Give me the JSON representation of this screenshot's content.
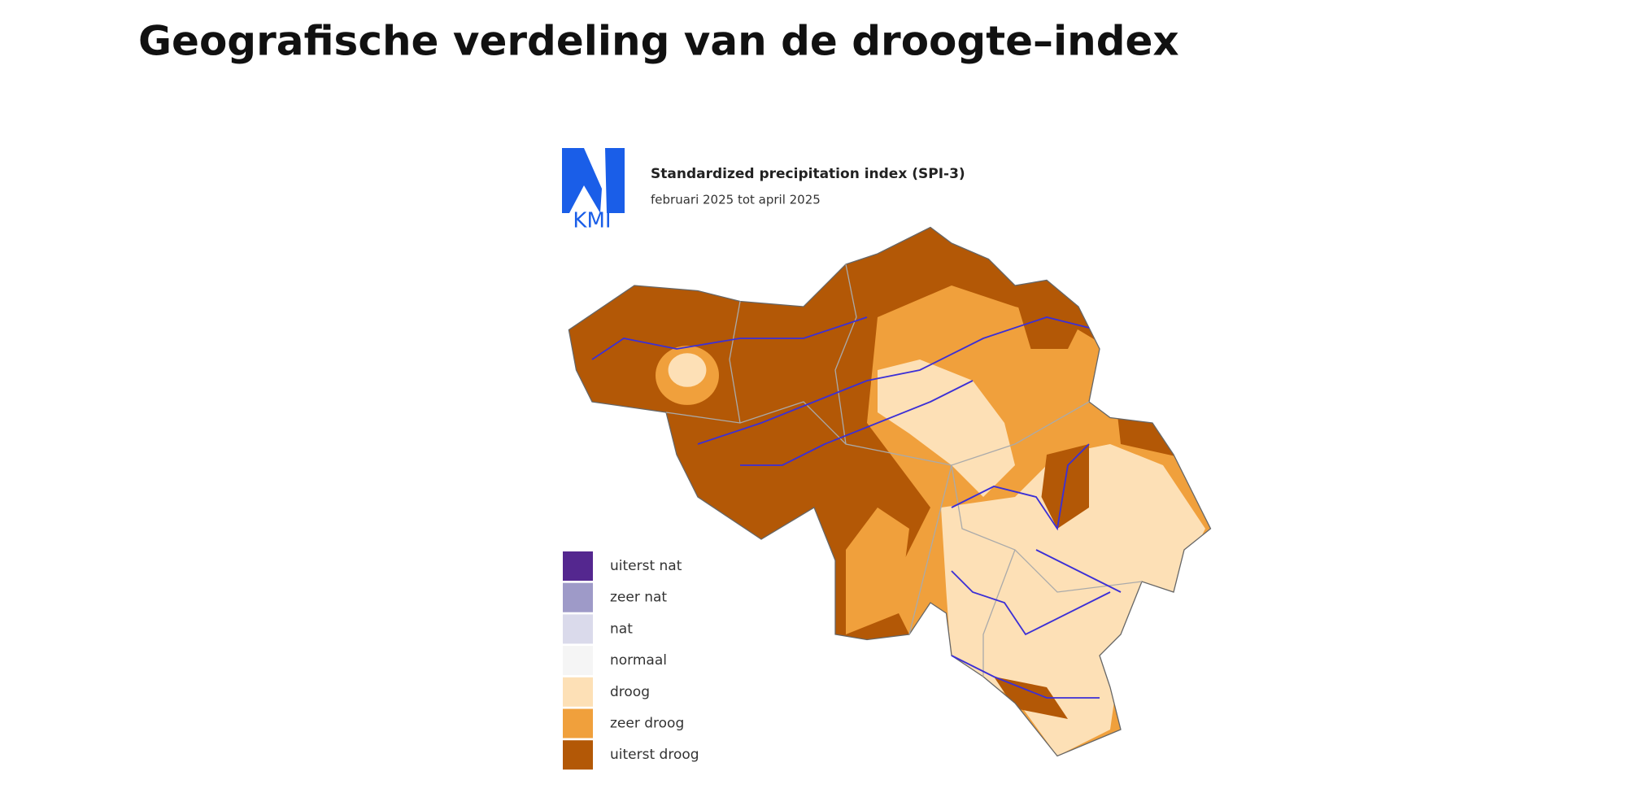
{
  "title": "Geografische verdeling van de droogte–index",
  "map": {
    "logo": "KMI",
    "title": "Standardized precipitation index (SPI-3)",
    "subtitle": "februari 2025 tot april 2025",
    "legend": [
      {
        "label": "uiterst nat",
        "color": "#54278f"
      },
      {
        "label": "zeer nat",
        "color": "#9e9ac8"
      },
      {
        "label": "nat",
        "color": "#dadaeb"
      },
      {
        "label": "normaal",
        "color": "#f5f5f5"
      },
      {
        "label": "droog",
        "color": "#fde0b6"
      },
      {
        "label": "zeer droog",
        "color": "#f0a03c"
      },
      {
        "label": "uiterst droog",
        "color": "#b35806"
      }
    ]
  }
}
